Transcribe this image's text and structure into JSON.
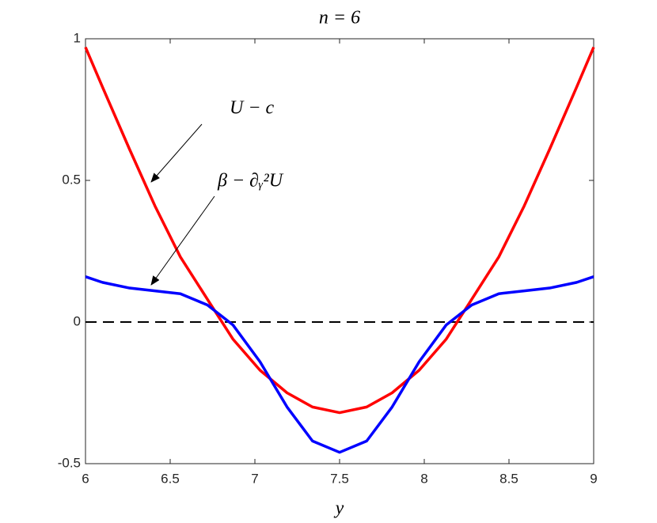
{
  "chart_data": {
    "type": "line",
    "title": "n = 6",
    "xlabel": "y",
    "x": [
      6,
      6.1,
      6.26,
      6.41,
      6.56,
      6.72,
      6.87,
      7.03,
      7.19,
      7.34,
      7.5,
      7.66,
      7.81,
      7.97,
      8.13,
      8.28,
      8.44,
      8.59,
      8.74,
      8.9,
      9
    ],
    "series": [
      {
        "name": "U − c",
        "color": "#ff0000",
        "values": [
          0.97,
          0.83,
          0.61,
          0.41,
          0.23,
          0.08,
          -0.06,
          -0.17,
          -0.25,
          -0.3,
          -0.32,
          -0.3,
          -0.25,
          -0.17,
          -0.06,
          0.08,
          0.23,
          0.41,
          0.61,
          0.83,
          0.97
        ]
      },
      {
        "name": "β − ∂ᵧ²U",
        "color": "#0000ff",
        "values": [
          0.16,
          0.14,
          0.12,
          0.11,
          0.1,
          0.06,
          -0.01,
          -0.14,
          -0.3,
          -0.42,
          -0.46,
          -0.42,
          -0.3,
          -0.14,
          -0.01,
          0.06,
          0.1,
          0.11,
          0.12,
          0.14,
          0.16
        ]
      }
    ],
    "hline": 0,
    "xlim": [
      6,
      9
    ],
    "xticks": [
      6,
      6.5,
      7,
      7.5,
      8,
      8.5,
      9
    ],
    "ylim": [
      -0.5,
      1
    ],
    "yticks": [
      -0.5,
      0,
      0.5,
      1
    ]
  }
}
